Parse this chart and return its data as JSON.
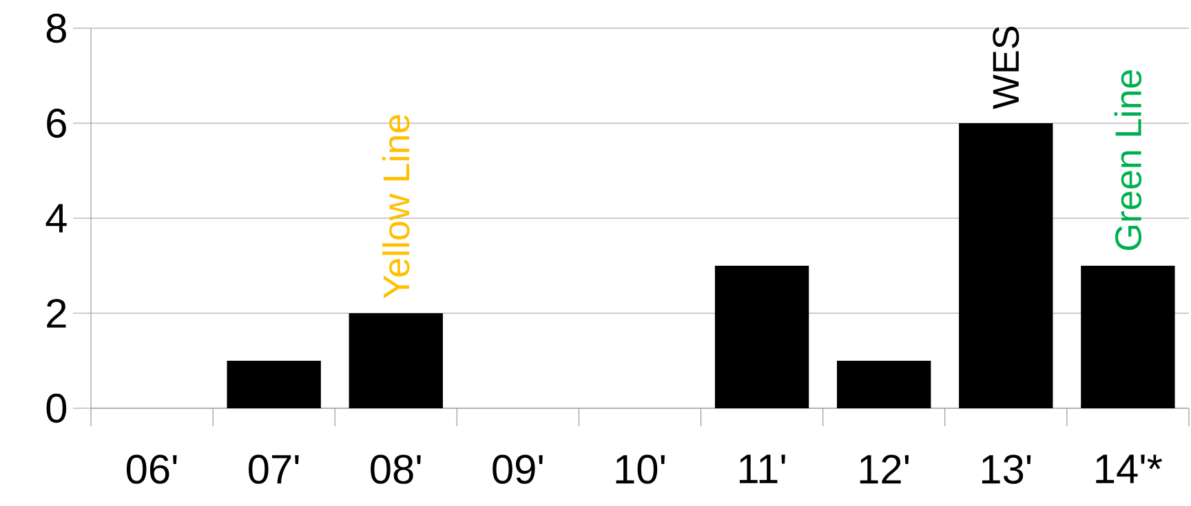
{
  "chart_data": {
    "type": "bar",
    "categories": [
      "06'",
      "07'",
      "08'",
      "09'",
      "10'",
      "11'",
      "12'",
      "13'",
      "14'*"
    ],
    "values": [
      0,
      1,
      2,
      0,
      0,
      3,
      1,
      6,
      3
    ],
    "color": "#000000",
    "ylim": [
      0,
      8
    ],
    "yticks": [
      0,
      2,
      4,
      6,
      8
    ],
    "grid": "y",
    "annotations": [
      {
        "text": "Yellow Line",
        "x": "08'",
        "y": 2
      },
      {
        "text": "WES",
        "x": "13'",
        "y": 6
      },
      {
        "text": "Green Line",
        "x": "14'*",
        "y": 3
      }
    ]
  }
}
